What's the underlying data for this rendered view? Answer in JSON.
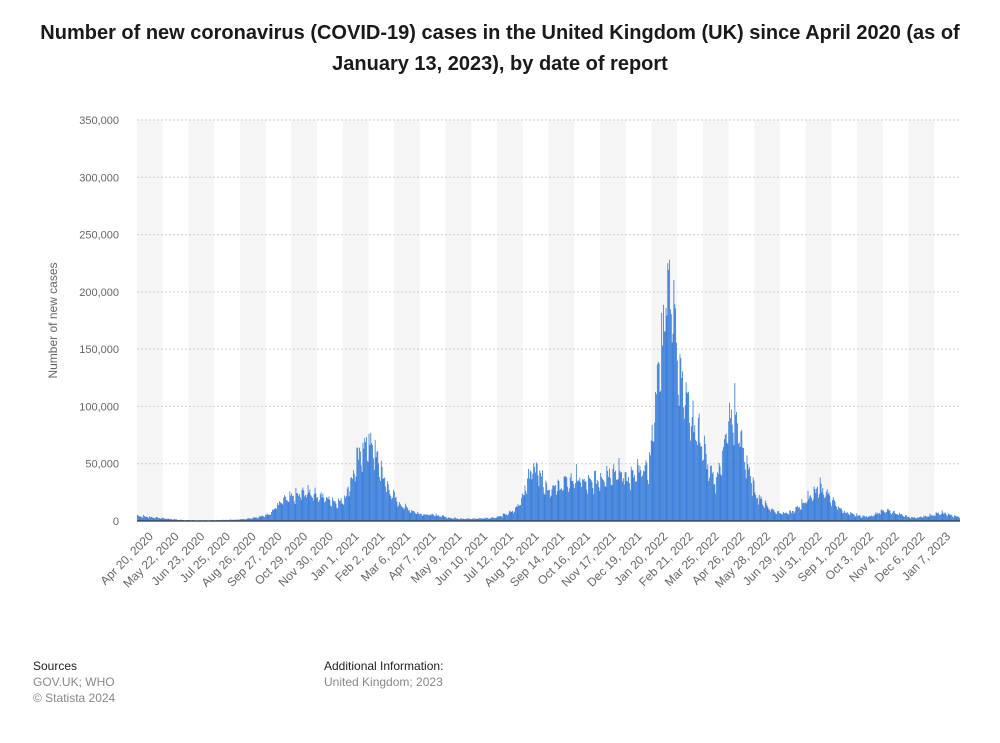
{
  "chart_data": {
    "type": "bar",
    "title": "Number of new coronavirus (COVID-19) cases in the United Kingdom (UK) since April 2020 (as of January 13, 2023), by date of report",
    "xlabel": "",
    "ylabel": "Number of new cases",
    "ylim": [
      0,
      350000
    ],
    "yticks": [
      0,
      50000,
      100000,
      150000,
      200000,
      250000,
      300000,
      350000
    ],
    "ytick_labels": [
      "0",
      "50,000",
      "100,000",
      "150,000",
      "200,000",
      "250,000",
      "300,000",
      "350,000"
    ],
    "grid": true,
    "legend": "none",
    "x_start": "2020-04-20",
    "x_end": "2023-01-13",
    "xtick_labels": [
      "Apr 20, 2020",
      "May 22, 2020",
      "Jun 23, 2020",
      "Jul 25, 2020",
      "Aug 26, 2020",
      "Sep 27, 2020",
      "Oct 29, 2020",
      "Nov 30, 2020",
      "Jan 1, 2021",
      "Feb 2, 2021",
      "Mar 6, 2021",
      "Apr 7, 2021",
      "May 9, 2021",
      "Jun 10, 2021",
      "Jul 12, 2021",
      "Aug 13, 2021",
      "Sep 14, 2021",
      "Oct 16, 2021",
      "Nov 17, 2021",
      "Dec 19, 2021",
      "Jan 20, 2022",
      "Feb 21, 2022",
      "Mar 25, 2022",
      "Apr 26, 2022",
      "May 28, 2022",
      "Jun 29, 2022",
      "Jul 31, 2022",
      "Sep 1, 2022",
      "Oct 3, 2022",
      "Nov 4, 2022",
      "Dec 6, 2022",
      "Jan 7, 2023"
    ],
    "weekly_values": [
      4500,
      4000,
      3500,
      3000,
      2500,
      2000,
      1500,
      1000,
      800,
      700,
      600,
      600,
      700,
      800,
      900,
      1000,
      1200,
      1500,
      2000,
      3000,
      3500,
      5000,
      8000,
      14000,
      18000,
      20000,
      22000,
      24000,
      26000,
      24000,
      22000,
      20000,
      18000,
      16000,
      20000,
      35000,
      50000,
      65000,
      70000,
      60000,
      45000,
      30000,
      22000,
      15000,
      12000,
      9000,
      7000,
      6000,
      5500,
      5000,
      4500,
      3000,
      2500,
      2200,
      2000,
      2000,
      2300,
      2500,
      2800,
      3500,
      5000,
      7000,
      10000,
      20000,
      35000,
      50000,
      45000,
      30000,
      28000,
      30000,
      33000,
      35000,
      38000,
      35000,
      32000,
      35000,
      38000,
      42000,
      45000,
      42000,
      40000,
      38000,
      42000,
      45000,
      48000,
      110000,
      150000,
      230000,
      180000,
      140000,
      110000,
      90000,
      80000,
      60000,
      40000,
      35000,
      60000,
      85000,
      95000,
      70000,
      50000,
      30000,
      20000,
      15000,
      10000,
      8000,
      7000,
      7000,
      10000,
      15000,
      20000,
      25000,
      30000,
      25000,
      18000,
      12000,
      8000,
      6000,
      5000,
      4000,
      4000,
      6000,
      8000,
      9000,
      8000,
      6000,
      4000,
      3000,
      3000,
      4000,
      5000,
      6000,
      7000,
      6000,
      4000
    ]
  },
  "sources": {
    "heading": "Sources",
    "lines": [
      "GOV.UK; WHO",
      "© Statista 2024"
    ]
  },
  "additional_info": {
    "heading": "Additional Information:",
    "line": "United Kingdom; 2023"
  }
}
